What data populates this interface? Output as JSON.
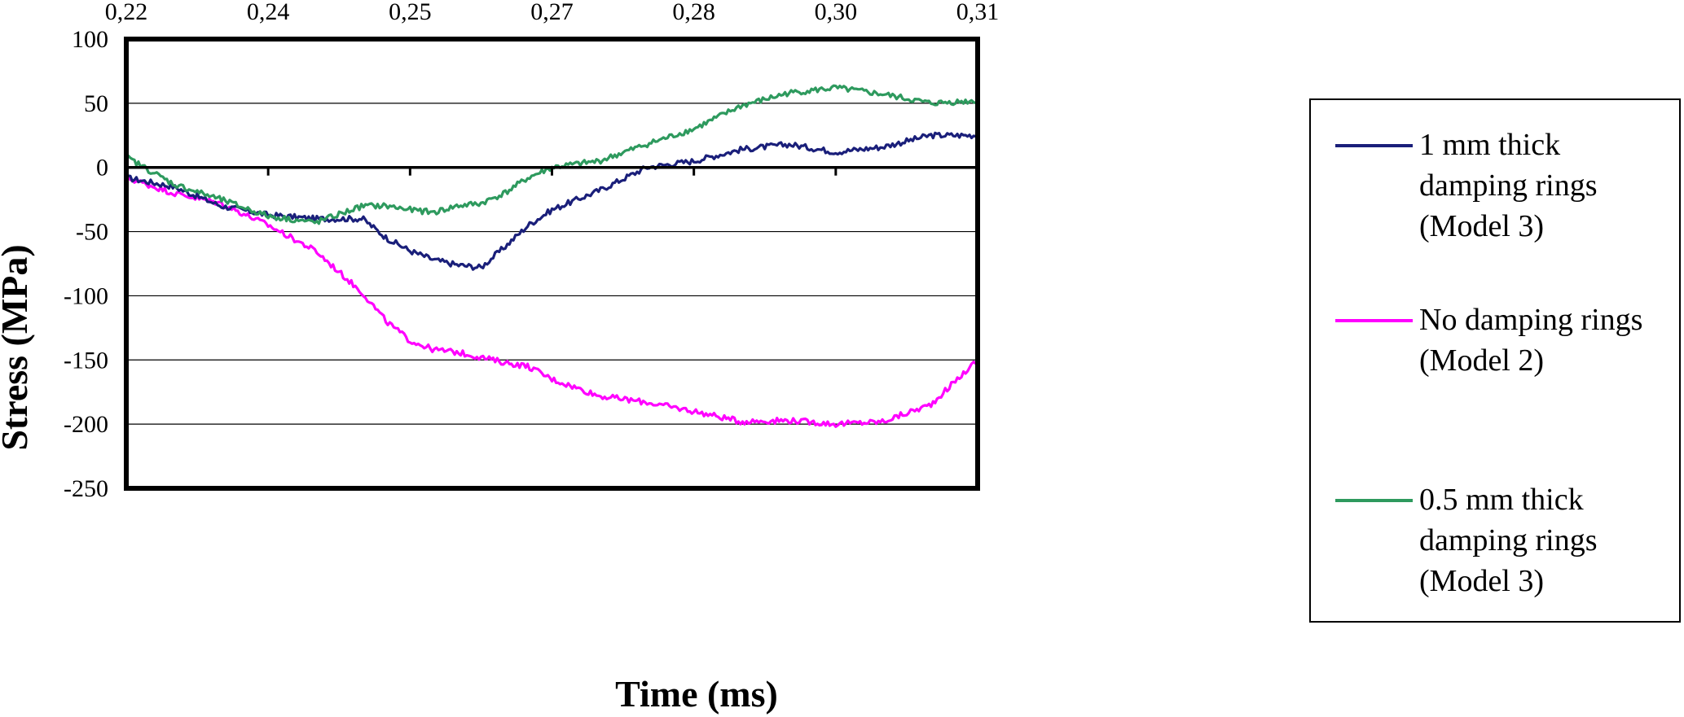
{
  "chart_data": {
    "type": "line",
    "title": "",
    "xlabel": "Time (ms)",
    "ylabel": "Stress  (MPa)",
    "xlim": [
      0.22,
      0.31
    ],
    "ylim": [
      -250,
      100
    ],
    "x_ticks": [
      "0,22",
      "0,24",
      "0,25",
      "0,27",
      "0,28",
      "0,30",
      "0,31"
    ],
    "y_ticks": [
      "100",
      "50",
      "0",
      "-50",
      "-100",
      "-150",
      "-200",
      "-250"
    ],
    "y_tick_values": [
      100,
      50,
      0,
      -50,
      -100,
      -150,
      -200,
      -250
    ],
    "x_axis_position": "top",
    "grid": "horizontal",
    "legend_position": "right",
    "x": [
      0.22,
      0.225,
      0.23,
      0.235,
      0.24,
      0.245,
      0.2475,
      0.25,
      0.2525,
      0.255,
      0.2575,
      0.26,
      0.2625,
      0.265,
      0.27,
      0.275,
      0.28,
      0.285,
      0.29,
      0.295,
      0.3,
      0.305,
      0.31
    ],
    "series": [
      {
        "name": "1 mm thick damping rings (Model 3)",
        "color": "#1a1f7a",
        "values": [
          -8,
          -15,
          -30,
          -37,
          -40,
          -40,
          -55,
          -65,
          -72,
          -76,
          -78,
          -62,
          -45,
          -33,
          -18,
          0,
          5,
          14,
          18,
          12,
          16,
          25,
          25
        ]
      },
      {
        "name": "No damping rings (Model 2)",
        "color": "#ff00ff",
        "values": [
          -8,
          -20,
          -28,
          -45,
          -65,
          -98,
          -120,
          -135,
          -142,
          -144,
          -148,
          -152,
          -155,
          -165,
          -178,
          -183,
          -190,
          -198,
          -197,
          -200,
          -198,
          -185,
          -150
        ]
      },
      {
        "name": "0.5 mm thick damping rings (Model 3)",
        "color": "#2e9a5e",
        "values": [
          8,
          -13,
          -25,
          -38,
          -43,
          -30,
          -30,
          -33,
          -35,
          -30,
          -28,
          -20,
          -8,
          0,
          5,
          18,
          30,
          48,
          58,
          62,
          57,
          50,
          52
        ]
      }
    ]
  },
  "legend": {
    "items": [
      {
        "label": "1 mm thick damping rings (Model 3)"
      },
      {
        "label": "No damping rings (Model 2)"
      },
      {
        "label": "0.5 mm thick damping rings (Model 3)"
      }
    ]
  }
}
